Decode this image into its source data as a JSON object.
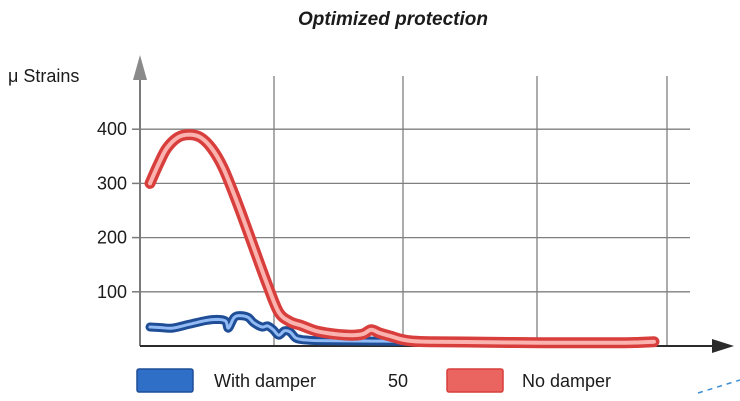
{
  "chart_data": {
    "type": "line",
    "title": "Optimized protection",
    "ylabel": "μ Strains",
    "xlabel": "",
    "ylim": [
      0,
      450
    ],
    "xlim": [
      0,
      100
    ],
    "yticks": [
      "100",
      "200",
      "300",
      "400"
    ],
    "grid": true,
    "legend": {
      "position": "bottom",
      "middle_label": "50"
    },
    "series": [
      {
        "name": "With damper",
        "color": "#2f6fc7",
        "x": [
          0,
          2,
          4,
          7,
          10,
          12,
          13.5,
          14,
          15,
          16,
          17.5,
          18.5,
          20,
          21,
          22,
          23,
          24,
          25,
          26,
          27,
          28,
          30,
          40,
          55,
          70,
          80,
          85
        ],
        "values": [
          35,
          34,
          33,
          40,
          47,
          49,
          46,
          33,
          52,
          56,
          53,
          43,
          35,
          37,
          30,
          20,
          28,
          26,
          15,
          12,
          11,
          10,
          9,
          8,
          7,
          7,
          7
        ]
      },
      {
        "name": "No damper",
        "color": "#ea6460",
        "x": [
          0,
          1.5,
          3,
          5,
          7,
          9,
          11,
          13,
          15,
          17,
          19,
          21,
          23,
          25,
          27,
          28.5,
          30,
          33,
          36,
          38,
          39.5,
          41,
          43,
          45,
          47,
          50,
          60,
          70,
          80,
          85,
          88,
          90
        ],
        "values": [
          300,
          335,
          365,
          385,
          390,
          385,
          365,
          330,
          280,
          225,
          168,
          112,
          62,
          45,
          38,
          32,
          27,
          22,
          20,
          22,
          30,
          24,
          18,
          12,
          9,
          8,
          7,
          6,
          6,
          6,
          7,
          8
        ]
      }
    ]
  }
}
